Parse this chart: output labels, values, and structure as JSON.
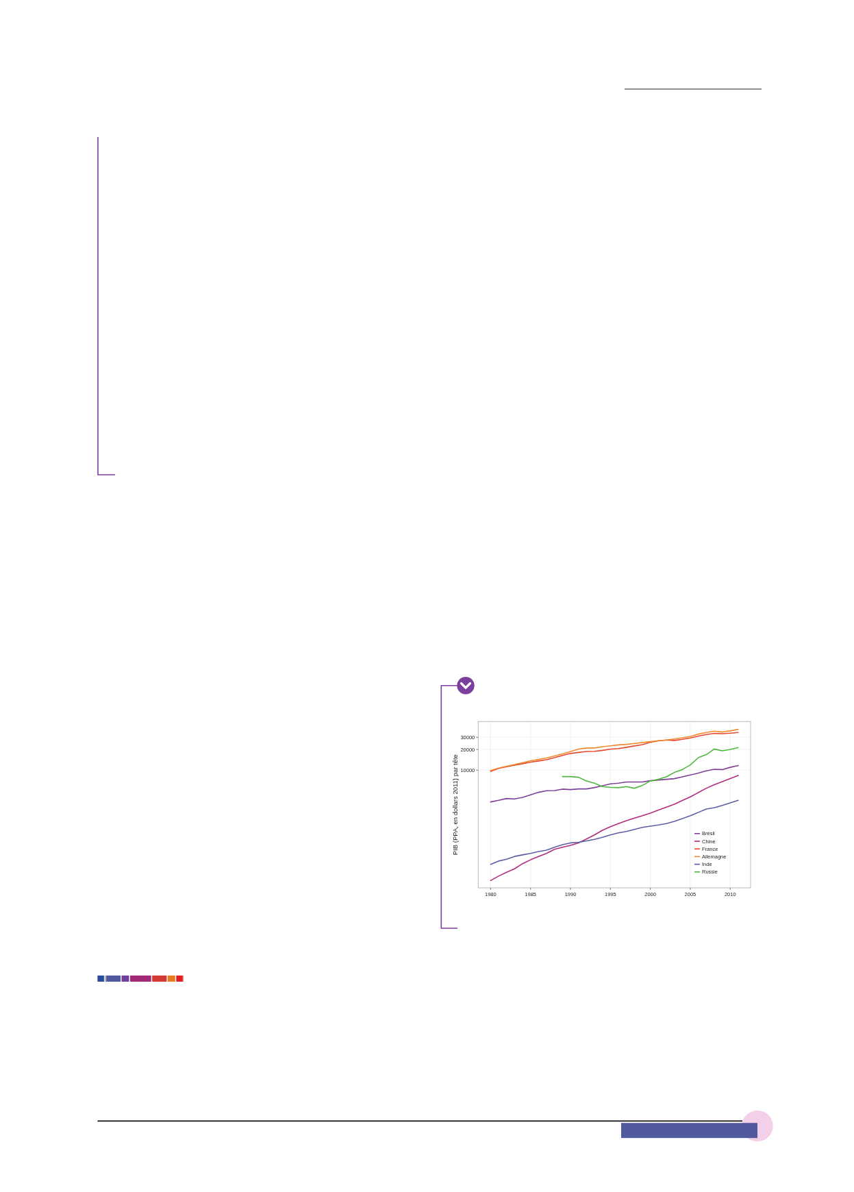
{
  "chart_data": {
    "type": "line",
    "ylabel": "PIB (PPA, en dollars 2011) par tête",
    "x": [
      1980,
      1981,
      1982,
      1983,
      1984,
      1985,
      1986,
      1987,
      1988,
      1989,
      1990,
      1991,
      1992,
      1993,
      1994,
      1995,
      1996,
      1997,
      1998,
      1999,
      2000,
      2001,
      2002,
      2003,
      2004,
      2005,
      2006,
      2007,
      2008,
      2009,
      2010,
      2011
    ],
    "series": [
      {
        "name": "Brésil",
        "color": "#7e3f98",
        "values": [
          3460,
          3650,
          3880,
          3820,
          4030,
          4390,
          4770,
          5030,
          5070,
          5310,
          5230,
          5350,
          5350,
          5600,
          5950,
          6330,
          6470,
          6730,
          6730,
          6730,
          7040,
          7200,
          7370,
          7540,
          8010,
          8520,
          9060,
          9770,
          10300,
          10200,
          11000,
          11700
        ]
      },
      {
        "name": "Chine",
        "color": "#b22c7a",
        "values": [
          250,
          290,
          330,
          370,
          440,
          500,
          560,
          620,
          710,
          760,
          810,
          880,
          1000,
          1150,
          1340,
          1510,
          1680,
          1850,
          2010,
          2180,
          2380,
          2630,
          2910,
          3210,
          3630,
          4100,
          4730,
          5470,
          6140,
          6830,
          7540,
          8390
        ]
      },
      {
        "name": "France",
        "color": "#e5482e",
        "values": [
          9600,
          10600,
          11200,
          11800,
          12400,
          13100,
          13600,
          14200,
          15200,
          16400,
          17500,
          18100,
          18700,
          18800,
          19400,
          20200,
          20600,
          21500,
          22500,
          23500,
          25400,
          26600,
          27400,
          27000,
          28000,
          29300,
          31200,
          32900,
          34200,
          33900,
          34400,
          35200
        ]
      },
      {
        "name": "Allemagne",
        "color": "#f08a2a",
        "values": [
          9900,
          10700,
          11400,
          12100,
          12900,
          13700,
          14300,
          15000,
          16100,
          17200,
          18700,
          20200,
          21000,
          21000,
          21900,
          22600,
          23300,
          23700,
          24400,
          25200,
          26000,
          26800,
          27400,
          28400,
          29500,
          30900,
          33400,
          35200,
          36900,
          35800,
          37200,
          39200
        ]
      },
      {
        "name": "Inde",
        "color": "#5b5ea6",
        "values": [
          430,
          480,
          510,
          560,
          590,
          620,
          660,
          690,
          760,
          830,
          880,
          900,
          940,
          990,
          1060,
          1150,
          1230,
          1290,
          1380,
          1480,
          1540,
          1600,
          1680,
          1810,
          1980,
          2180,
          2440,
          2730,
          2860,
          3070,
          3360,
          3650
        ]
      },
      {
        "name": "Russie",
        "color": "#4cb83c",
        "values": [
          null,
          null,
          null,
          null,
          null,
          null,
          null,
          null,
          null,
          8080,
          8080,
          7890,
          6990,
          6470,
          5770,
          5640,
          5560,
          5770,
          5470,
          6000,
          6990,
          7370,
          8010,
          9270,
          10200,
          11900,
          15200,
          16800,
          20300,
          19100,
          20000,
          21300
        ]
      }
    ],
    "xlim": [
      1978.45,
      2012.55
    ],
    "xticks": [
      1980,
      1985,
      1990,
      1995,
      2000,
      2005,
      2010
    ],
    "ylim": [
      196,
      50800
    ],
    "yticks": [
      10000,
      20000,
      30000
    ],
    "log": "y",
    "grid": true,
    "legend": "bottom right"
  }
}
